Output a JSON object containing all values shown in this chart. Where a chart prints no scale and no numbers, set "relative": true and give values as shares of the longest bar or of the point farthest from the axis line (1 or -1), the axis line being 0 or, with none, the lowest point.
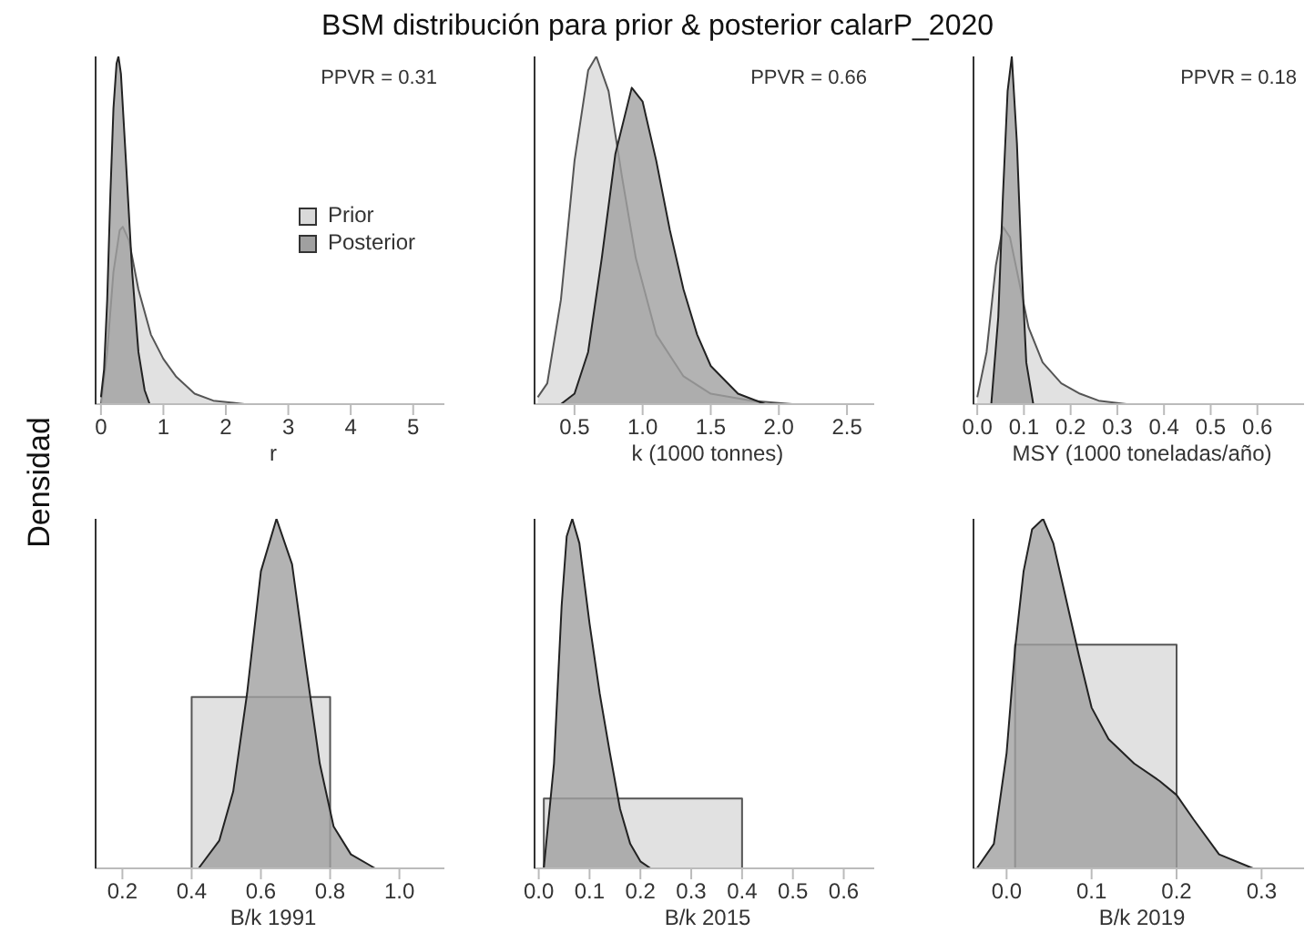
{
  "chart_data": [
    {
      "type": "area",
      "title": "BSM distribución para prior & posterior calarP_2020",
      "ylabel": "Densidad",
      "xlabel": "r",
      "relative": true,
      "legend": "right",
      "xlim": [
        -0.1,
        5.5
      ],
      "xticks": [
        0,
        1,
        2,
        3,
        4,
        5
      ],
      "annotations": [
        "PPVR = 0.31"
      ],
      "series": [
        {
          "name": "Prior",
          "color": "#d9d9d9",
          "x": [
            0,
            0.1,
            0.2,
            0.3,
            0.35,
            0.45,
            0.6,
            0.8,
            1.0,
            1.2,
            1.5,
            1.8,
            2.3
          ],
          "values": [
            0,
            0.15,
            0.38,
            0.5,
            0.51,
            0.47,
            0.33,
            0.2,
            0.13,
            0.08,
            0.03,
            0.01,
            0
          ]
        },
        {
          "name": "Posterior",
          "color": "#a0a0a0",
          "x": [
            0,
            0.05,
            0.1,
            0.15,
            0.2,
            0.25,
            0.28,
            0.32,
            0.4,
            0.5,
            0.6,
            0.7,
            0.78
          ],
          "values": [
            0.02,
            0.1,
            0.3,
            0.6,
            0.85,
            0.98,
            1,
            0.95,
            0.7,
            0.38,
            0.15,
            0.04,
            0
          ]
        }
      ]
    },
    {
      "type": "area",
      "xlabel": "k (1000 tonnes)",
      "relative": true,
      "xlim": [
        0.2,
        2.7
      ],
      "xticks": [
        0.5,
        {
          "value": 1,
          "label": "1.0"
        },
        1.5,
        {
          "value": 2,
          "label": "2.0"
        },
        2.5
      ],
      "annotations": [
        "PPVR = 0.66"
      ],
      "series": [
        {
          "color": "#d9d9d9",
          "x": [
            0.23,
            0.3,
            0.4,
            0.5,
            0.6,
            0.66,
            0.75,
            0.85,
            0.95,
            1.1,
            1.3,
            1.5,
            1.8,
            2.1
          ],
          "values": [
            0.02,
            0.06,
            0.3,
            0.7,
            0.96,
            1,
            0.9,
            0.65,
            0.42,
            0.2,
            0.08,
            0.03,
            0.01,
            0
          ]
        },
        {
          "color": "#a0a0a0",
          "x": [
            0.4,
            0.5,
            0.6,
            0.7,
            0.8,
            0.92,
            1.0,
            1.1,
            1.2,
            1.3,
            1.4,
            1.5,
            1.7,
            1.9
          ],
          "values": [
            0,
            0.03,
            0.15,
            0.42,
            0.72,
            0.91,
            0.87,
            0.7,
            0.5,
            0.33,
            0.2,
            0.11,
            0.03,
            0
          ]
        }
      ]
    },
    {
      "type": "area",
      "xlabel": "MSY (1000 toneladas/año)",
      "relative": true,
      "xlim": [
        -0.01,
        0.7
      ],
      "xticks": [
        {
          "value": 0,
          "label": "0.0"
        },
        0.1,
        0.2,
        0.3,
        0.4,
        0.5,
        0.6
      ],
      "annotations": [
        "PPVR = 0.18"
      ],
      "series": [
        {
          "color": "#d9d9d9",
          "x": [
            0,
            0.02,
            0.04,
            0.055,
            0.07,
            0.09,
            0.11,
            0.14,
            0.18,
            0.22,
            0.26,
            0.32
          ],
          "values": [
            0.02,
            0.15,
            0.4,
            0.51,
            0.48,
            0.35,
            0.22,
            0.12,
            0.06,
            0.03,
            0.01,
            0
          ]
        },
        {
          "color": "#a0a0a0",
          "x": [
            0.03,
            0.045,
            0.055,
            0.065,
            0.074,
            0.085,
            0.095,
            0.105,
            0.12
          ],
          "values": [
            0,
            0.25,
            0.6,
            0.9,
            1,
            0.75,
            0.4,
            0.12,
            0
          ]
        }
      ]
    },
    {
      "type": "area",
      "xlabel": "B/k 1991",
      "relative": true,
      "xlim": [
        0.12,
        1.13
      ],
      "xticks": [
        0.2,
        0.4,
        0.6,
        0.8,
        {
          "value": 1,
          "label": "1.0"
        }
      ],
      "series": [
        {
          "color": "#d9d9d9",
          "x": [
            0.4,
            0.4,
            0.8,
            0.8
          ],
          "values": [
            0,
            0.49,
            0.49,
            0
          ]
        },
        {
          "color": "#a0a0a0",
          "x": [
            0.42,
            0.48,
            0.52,
            0.56,
            0.6,
            0.645,
            0.69,
            0.73,
            0.77,
            0.81,
            0.86,
            0.93
          ],
          "values": [
            0,
            0.08,
            0.22,
            0.5,
            0.85,
            1,
            0.87,
            0.58,
            0.3,
            0.12,
            0.04,
            0
          ]
        }
      ]
    },
    {
      "type": "area",
      "xlabel": "B/k 2015",
      "relative": true,
      "xlim": [
        -0.01,
        0.66
      ],
      "xticks": [
        {
          "value": 0,
          "label": "0.0"
        },
        0.1,
        0.2,
        0.3,
        0.4,
        0.5,
        0.6
      ],
      "series": [
        {
          "color": "#d9d9d9",
          "x": [
            0.01,
            0.01,
            0.4,
            0.4
          ],
          "values": [
            0,
            0.2,
            0.2,
            0
          ]
        },
        {
          "color": "#a0a0a0",
          "x": [
            0.01,
            0.03,
            0.045,
            0.055,
            0.066,
            0.08,
            0.1,
            0.12,
            0.14,
            0.16,
            0.18,
            0.2,
            0.22
          ],
          "values": [
            0,
            0.3,
            0.75,
            0.95,
            1,
            0.93,
            0.7,
            0.5,
            0.33,
            0.17,
            0.07,
            0.02,
            0
          ]
        }
      ]
    },
    {
      "type": "area",
      "xlabel": "B/k 2019",
      "relative": true,
      "xlim": [
        -0.04,
        0.35
      ],
      "xticks": [
        {
          "value": 0,
          "label": "0.0"
        },
        0.1,
        0.2,
        0.3
      ],
      "series": [
        {
          "color": "#d9d9d9",
          "x": [
            0.01,
            0.01,
            0.2,
            0.2
          ],
          "values": [
            0,
            0.64,
            0.64,
            0
          ]
        },
        {
          "color": "#a0a0a0",
          "x": [
            -0.035,
            -0.015,
            0,
            0.01,
            0.02,
            0.03,
            0.043,
            0.055,
            0.07,
            0.085,
            0.1,
            0.12,
            0.15,
            0.18,
            0.2,
            0.22,
            0.25,
            0.29
          ],
          "values": [
            0,
            0.07,
            0.33,
            0.63,
            0.85,
            0.97,
            1,
            0.93,
            0.77,
            0.61,
            0.46,
            0.37,
            0.3,
            0.25,
            0.21,
            0.14,
            0.04,
            0
          ]
        }
      ]
    }
  ]
}
